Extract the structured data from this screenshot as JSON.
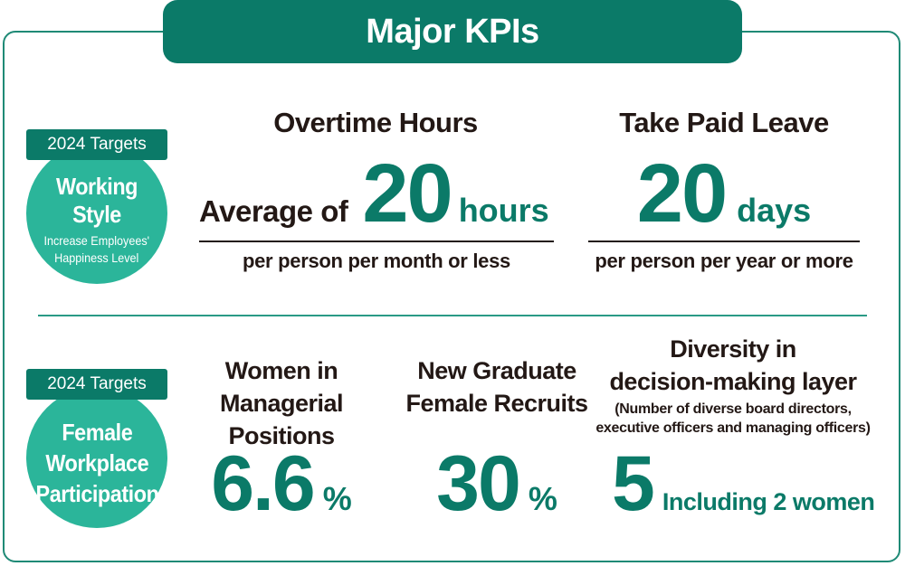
{
  "title": "Major KPIs",
  "working_style": {
    "tag": "2024 Targets",
    "circle_title": "Working Style",
    "circle_sub_line1": "Increase Employees'",
    "circle_sub_line2": "Happiness Level",
    "overtime": {
      "heading": "Overtime Hours",
      "prefix": "Average of",
      "value": "20",
      "unit": "hours",
      "note": "per person per month or less"
    },
    "paid_leave": {
      "heading": "Take Paid Leave",
      "value": "20",
      "unit": "days",
      "note": "per person per year or more"
    }
  },
  "female_participation": {
    "tag": "2024 Targets",
    "circle_line1": "Female",
    "circle_line2": "Workplace",
    "circle_line3": "Participation",
    "managerial": {
      "heading_line1": "Women in",
      "heading_line2": "Managerial Positions",
      "value": "6.6",
      "unit": "%"
    },
    "recruits": {
      "heading_line1": "New Graduate",
      "heading_line2": "Female Recruits",
      "value": "30",
      "unit": "%"
    },
    "diversity": {
      "heading_line1": "Diversity in",
      "heading_line2": "decision-making layer",
      "note_line1": "(Number of diverse board directors,",
      "note_line2": "executive officers and managing officers)",
      "value": "5",
      "unit": "Including 2 women"
    }
  },
  "colors": {
    "dark_green": "#0b7a68",
    "circle_green": "#2bb59a",
    "border_green": "#1f8a76",
    "text_dark": "#231815"
  }
}
